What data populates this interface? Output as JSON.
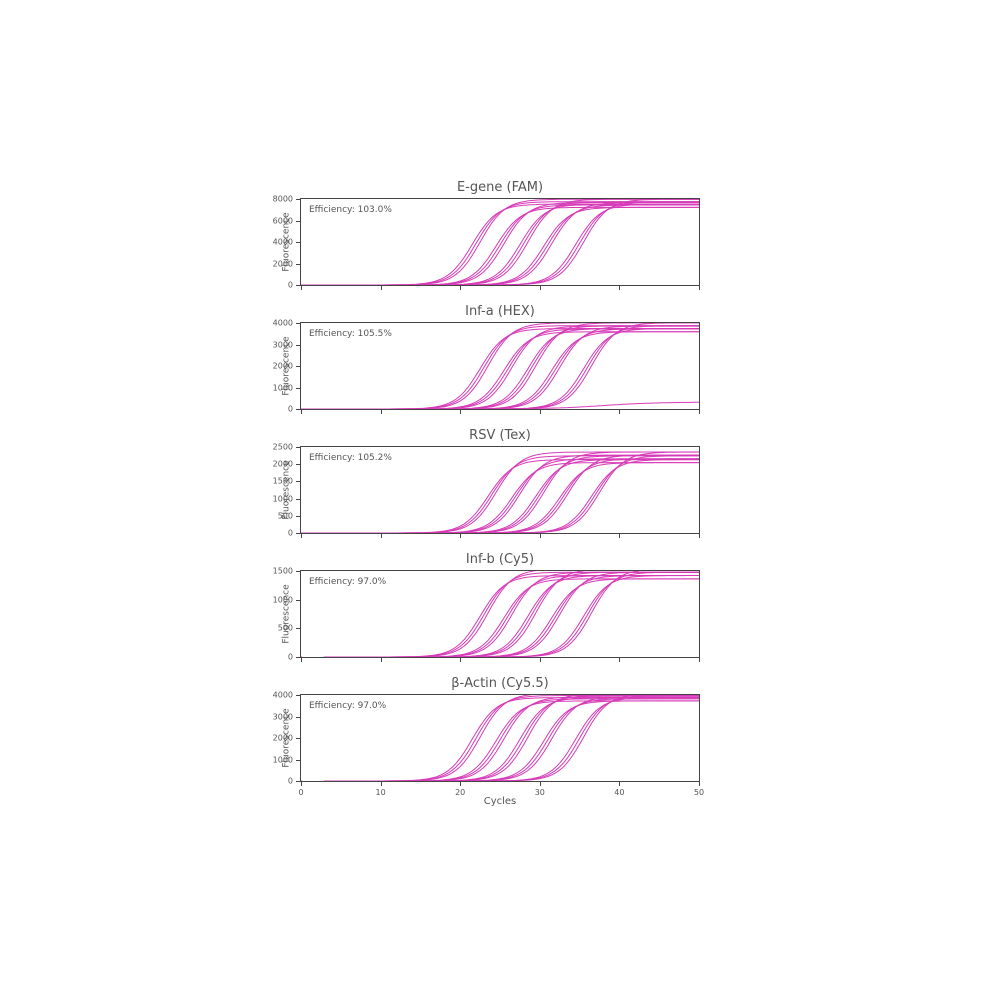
{
  "figure": {
    "background_color": "#ffffff",
    "line_color": "#d63ab8",
    "border_color": "#444444",
    "text_color": "#555555",
    "title_fontsize": 13,
    "label_fontsize": 10,
    "tick_fontsize": 8,
    "line_width": 1.0,
    "xlim": [
      0,
      50
    ],
    "xtick_step": 10,
    "xlabel": "Cycles",
    "ylabel": "Fluorescence"
  },
  "panels": [
    {
      "title": "E-gene (FAM)",
      "efficiency": "Efficiency: 103.0%",
      "ylim": [
        0,
        8000
      ],
      "ytick_step": 2000,
      "plateau": 7600,
      "spread": 0.06,
      "baseline_curve": false,
      "negative_dip": false,
      "midpoints": [
        22,
        25,
        28,
        31,
        35
      ]
    },
    {
      "title": "Inf-a (HEX)",
      "efficiency": "Efficiency: 105.5%",
      "ylim": [
        0,
        4000
      ],
      "ytick_step": 1000,
      "plateau": 3800,
      "spread": 0.07,
      "baseline_curve": true,
      "negative_dip": true,
      "midpoints": [
        23,
        26,
        29,
        32,
        36
      ]
    },
    {
      "title": "RSV (Tex)",
      "efficiency": "Efficiency: 105.2%",
      "ylim": [
        0,
        2500
      ],
      "ytick_step": 500,
      "plateau": 2200,
      "spread": 0.1,
      "baseline_curve": false,
      "negative_dip": false,
      "midpoints": [
        24,
        27,
        30,
        33,
        37
      ]
    },
    {
      "title": "Inf-b (Cy5)",
      "efficiency": "Efficiency: 97.0%",
      "ylim": [
        0,
        1500
      ],
      "ytick_step": 500,
      "plateau": 1450,
      "spread": 0.08,
      "baseline_curve": false,
      "negative_dip": true,
      "midpoints": [
        23,
        26,
        29,
        32,
        36
      ]
    },
    {
      "title": "β-Actin (Cy5.5)",
      "efficiency": "Efficiency: 97.0%",
      "ylim": [
        0,
        4000
      ],
      "ytick_step": 1000,
      "plateau": 3900,
      "spread": 0.05,
      "baseline_curve": false,
      "negative_dip": true,
      "midpoints": [
        22,
        25,
        28,
        31,
        35
      ]
    }
  ]
}
